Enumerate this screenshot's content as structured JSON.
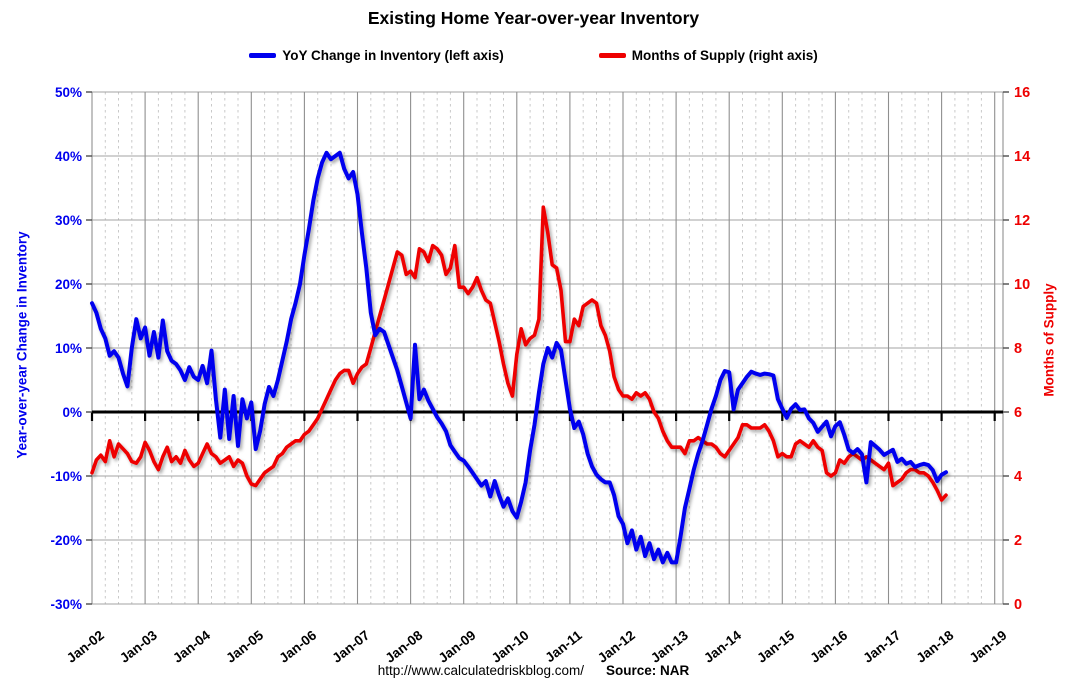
{
  "footer": {
    "url": "http://www.calculatedriskblog.com/",
    "source": "Source: NAR"
  },
  "chart_data": {
    "type": "line",
    "title": "Existing Home Year-over-year Inventory",
    "x": {
      "start": "2002-01",
      "frequency": "monthly",
      "tick_labels": [
        "Jan-02",
        "Jan-03",
        "Jan-04",
        "Jan-05",
        "Jan-06",
        "Jan-07",
        "Jan-08",
        "Jan-09",
        "Jan-10",
        "Jan-11",
        "Jan-12",
        "Jan-13",
        "Jan-14",
        "Jan-15",
        "Jan-16",
        "Jan-17",
        "Jan-18",
        "Jan-19"
      ]
    },
    "left_axis": {
      "label": "Year-over-year Change in Inventory",
      "color": "#0000ee",
      "range_percent": [
        -30,
        50
      ],
      "tick_labels": [
        "50%",
        "40%",
        "30%",
        "20%",
        "10%",
        "0%",
        "-10%",
        "-20%",
        "-30%"
      ]
    },
    "right_axis": {
      "label": "Months of Supply",
      "color": "#ee0000",
      "range_months": [
        0,
        16
      ],
      "tick_labels": [
        "16",
        "14",
        "12",
        "10",
        "8",
        "6",
        "4",
        "2",
        "0"
      ]
    },
    "grid": {
      "major_vertical": "yearly",
      "minor_vertical": "quarterly",
      "horizontal_step_percent": 10,
      "zero_line": "black"
    },
    "legend_position": "top-center",
    "series": [
      {
        "name": "YoY Change in Inventory (left axis)",
        "axis": "left",
        "unit": "percent",
        "color": "#0000ee",
        "values": [
          17,
          15.5,
          13,
          11.5,
          8.8,
          9.5,
          8.5,
          6,
          4,
          10,
          14.5,
          11.5,
          13.2,
          8.8,
          12.5,
          8.5,
          14.3,
          9.5,
          8,
          7.5,
          6.5,
          5,
          7,
          5.5,
          5,
          7.2,
          4.5,
          9.6,
          2,
          -4,
          3.5,
          -4.2,
          2.5,
          -5.3,
          2,
          -1,
          1.5,
          -5.8,
          -3,
          1.2,
          3.9,
          2.5,
          5,
          8,
          11,
          14.5,
          17,
          20,
          24.5,
          28.5,
          33,
          36.5,
          39,
          40.5,
          39.5,
          40,
          40.5,
          38,
          36.5,
          37.5,
          34,
          28,
          22.5,
          15.5,
          12,
          13,
          12.5,
          10.5,
          8.5,
          6.5,
          4,
          1.5,
          -1,
          10.5,
          2,
          3.5,
          1.8,
          0.5,
          -0.8,
          -1.8,
          -3,
          -5.2,
          -6.2,
          -7.2,
          -7.6,
          -8.5,
          -9.5,
          -10.5,
          -11.5,
          -10.8,
          -13.2,
          -10.8,
          -13,
          -14.8,
          -13.5,
          -15.5,
          -16.5,
          -14,
          -11,
          -6,
          -2,
          3,
          7.5,
          10,
          8.5,
          10.8,
          9.7,
          5,
          0.5,
          -2.5,
          -1.5,
          -3.5,
          -6.5,
          -8.5,
          -9.8,
          -10.5,
          -11,
          -11,
          -13,
          -16.3,
          -17.5,
          -20.5,
          -18.5,
          -21.5,
          -19.5,
          -22.5,
          -20.5,
          -23,
          -21.5,
          -23.5,
          -22,
          -23.5,
          -23.5,
          -19.5,
          -15,
          -12,
          -9,
          -6.5,
          -4.5,
          -2,
          0.5,
          2.5,
          5,
          6.4,
          6.2,
          0.4,
          3.5,
          4.5,
          5.5,
          6.3,
          6,
          5.8,
          6,
          5.9,
          5.7,
          2,
          0.5,
          -0.9,
          0.5,
          1.2,
          0.3,
          0.4,
          -1,
          -1.7,
          -3.1,
          -2.3,
          -1.5,
          -3.8,
          -2.2,
          -1.6,
          -3.6,
          -5.9,
          -6.4,
          -5.8,
          -6.6,
          -11,
          -4.7,
          -5.3,
          -5.9,
          -6.7,
          -6.3,
          -5.9,
          -7.8,
          -7.3,
          -8.1,
          -7.8,
          -8.6,
          -8.3,
          -8.1,
          -8.3,
          -9.1,
          -10.8,
          -9.8,
          -9.4
        ]
      },
      {
        "name": "Months of Supply (right axis)",
        "axis": "right",
        "unit": "months",
        "color": "#ee0000",
        "values": [
          4.1,
          4.5,
          4.65,
          4.45,
          5.1,
          4.6,
          5,
          4.85,
          4.7,
          4.45,
          4.4,
          4.6,
          5.05,
          4.8,
          4.45,
          4.2,
          4.6,
          4.9,
          4.45,
          4.6,
          4.4,
          4.8,
          4.5,
          4.3,
          4.4,
          4.7,
          5,
          4.7,
          4.6,
          4.4,
          4.5,
          4.6,
          4.3,
          4.5,
          4.4,
          4,
          3.75,
          3.7,
          3.9,
          4.1,
          4.2,
          4.3,
          4.6,
          4.7,
          4.9,
          5,
          5.1,
          5.1,
          5.3,
          5.4,
          5.6,
          5.8,
          6.1,
          6.4,
          6.7,
          7,
          7.2,
          7.3,
          7.3,
          6.9,
          7.2,
          7.4,
          7.5,
          8,
          8.5,
          9,
          9.5,
          10,
          10.5,
          11,
          10.9,
          10.3,
          10.4,
          10.2,
          11.1,
          11,
          10.7,
          11.2,
          11.1,
          10.9,
          10.3,
          10.5,
          11.2,
          9.9,
          9.9,
          9.7,
          9.9,
          10.2,
          9.8,
          9.5,
          9.4,
          8.8,
          8.2,
          7.5,
          6.9,
          6.5,
          7.8,
          8.6,
          8.1,
          8.3,
          8.4,
          8.9,
          12.4,
          11.6,
          10.6,
          10.5,
          9.8,
          8.2,
          8.2,
          8.9,
          8.7,
          9.3,
          9.4,
          9.5,
          9.4,
          8.7,
          8.4,
          7.9,
          7.1,
          6.7,
          6.5,
          6.5,
          6.4,
          6.6,
          6.5,
          6.6,
          6.4,
          6,
          5.8,
          5.4,
          5.1,
          4.9,
          4.9,
          4.9,
          4.7,
          5.1,
          5.1,
          5.2,
          5.1,
          5,
          5,
          4.9,
          4.7,
          4.6,
          4.8,
          5,
          5.2,
          5.6,
          5.6,
          5.5,
          5.5,
          5.5,
          5.6,
          5.4,
          5.1,
          4.6,
          4.7,
          4.6,
          4.6,
          5,
          5.1,
          5,
          4.9,
          5.1,
          4.9,
          4.8,
          4.1,
          4,
          4.1,
          4.5,
          4.4,
          4.6,
          4.7,
          4.6,
          4.5,
          4.6,
          4.5,
          4.4,
          4.3,
          4.2,
          4.4,
          3.7,
          3.8,
          3.9,
          4.1,
          4.2,
          4.2,
          4.1,
          4.1,
          4,
          3.8,
          3.55,
          3.25,
          3.4
        ]
      }
    ]
  }
}
